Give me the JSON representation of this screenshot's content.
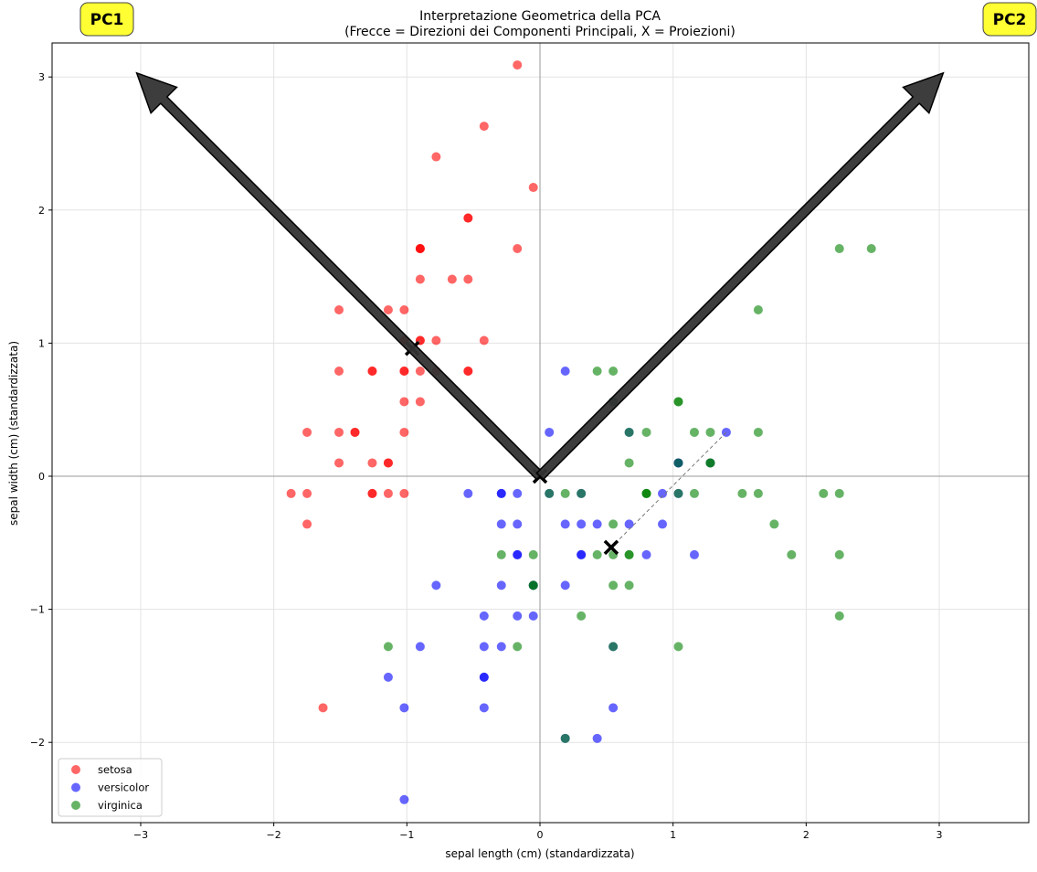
{
  "chart_data": {
    "type": "scatter",
    "title": "Interpretazione Geometrica della PCA",
    "subtitle": "(Frecce = Direzioni dei Componenti Principali, X = Proiezioni)",
    "xlabel": "sepal length (cm) (standardizzata)",
    "ylabel": "sepal width (cm) (standardizzata)",
    "xlim": [
      -3.67,
      3.67
    ],
    "ylim": [
      -2.6,
      3.26
    ],
    "xticks": [
      -3,
      -2,
      -1,
      0,
      1,
      2,
      3
    ],
    "xtick_labels": [
      "−3",
      "−2",
      "−1",
      "0",
      "1",
      "2",
      "3"
    ],
    "yticks": [
      -2,
      -1,
      0,
      1,
      2,
      3
    ],
    "ytick_labels": [
      "−2",
      "−1",
      "0",
      "1",
      "2",
      "3"
    ],
    "grid": true,
    "legend_position": "lower-left",
    "series": [
      {
        "name": "setosa",
        "color": "#ff0000",
        "x": [
          -0.9,
          -1.14,
          -1.39,
          -1.51,
          -1.02,
          -0.54,
          -1.51,
          -1.02,
          -1.75,
          -1.14,
          -0.54,
          -1.26,
          -1.26,
          -1.87,
          -0.05,
          -0.17,
          -0.54,
          -0.9,
          -0.17,
          -0.9,
          -0.54,
          -0.9,
          -1.51,
          -0.9,
          -1.26,
          -1.02,
          -1.02,
          -0.78,
          -0.78,
          -1.39,
          -1.26,
          -0.54,
          -0.78,
          -0.42,
          -1.14,
          -1.02,
          -0.42,
          -1.14,
          -1.75,
          -0.9,
          -1.02,
          -1.63,
          -1.75,
          -1.02,
          -0.9,
          -1.26,
          -0.9,
          -1.51,
          -0.66,
          -1.02
        ],
        "y": [
          1.02,
          -0.13,
          0.33,
          0.1,
          1.25,
          1.94,
          0.79,
          0.79,
          -0.36,
          0.1,
          1.48,
          0.79,
          -0.13,
          -0.13,
          2.17,
          3.09,
          1.94,
          1.02,
          1.71,
          1.71,
          0.79,
          1.48,
          1.25,
          0.56,
          0.79,
          -0.13,
          0.79,
          1.02,
          0.79,
          0.33,
          0.1,
          0.79,
          2.4,
          2.63,
          0.1,
          0.33,
          1.02,
          1.25,
          -0.13,
          0.79,
          1.02,
          -1.74,
          0.33,
          1.02,
          1.71,
          -0.13,
          1.71,
          0.33,
          1.48,
          0.56
        ]
      },
      {
        "name": "versicolor",
        "color": "#0000ff",
        "x": [
          1.4,
          0.67,
          1.28,
          -0.42,
          0.8,
          -0.17,
          0.55,
          -1.14,
          0.92,
          -0.78,
          -1.02,
          0.07,
          0.19,
          0.31,
          -0.29,
          1.04,
          -0.29,
          -0.05,
          0.43,
          -0.29,
          0.07,
          0.31,
          0.55,
          0.31,
          0.67,
          0.92,
          1.16,
          1.04,
          0.19,
          -0.17,
          -0.42,
          -0.42,
          -0.05,
          0.19,
          -0.54,
          0.19,
          1.04,
          0.55,
          -0.29,
          -0.42,
          -0.42,
          0.31,
          -0.05,
          -1.02,
          -0.29,
          -0.17,
          -0.17,
          0.43,
          -0.9,
          -0.17
        ],
        "y": [
          0.33,
          0.33,
          0.1,
          -1.74,
          -0.59,
          -0.59,
          0.56,
          -1.51,
          -0.36,
          -0.82,
          -2.43,
          -0.13,
          -1.97,
          -0.36,
          -0.36,
          0.1,
          -0.13,
          -0.82,
          -1.97,
          -1.28,
          0.33,
          -0.59,
          -1.28,
          -0.59,
          -0.36,
          -0.13,
          -0.59,
          -0.13,
          -0.36,
          -1.05,
          -1.51,
          -1.51,
          -0.82,
          -0.82,
          -0.13,
          0.79,
          0.1,
          -1.74,
          -0.13,
          -1.28,
          -1.05,
          -0.13,
          -1.05,
          -1.74,
          -0.82,
          -0.13,
          -0.36,
          -0.36,
          -1.28,
          -0.59
        ]
      },
      {
        "name": "virginica",
        "color": "#008000",
        "x": [
          0.55,
          -0.05,
          1.52,
          0.55,
          0.8,
          2.13,
          -1.14,
          1.76,
          1.04,
          1.64,
          0.8,
          0.67,
          1.16,
          -0.17,
          -0.05,
          0.67,
          0.8,
          2.25,
          2.25,
          0.19,
          1.28,
          -0.29,
          2.25,
          0.55,
          1.04,
          1.64,
          0.43,
          0.31,
          0.67,
          1.64,
          1.89,
          2.49,
          0.67,
          0.55,
          0.31,
          2.25,
          0.55,
          0.67,
          0.19,
          1.28,
          1.04,
          1.28,
          -0.05,
          1.16,
          1.04,
          1.04,
          0.55,
          0.8,
          0.43,
          0.07
        ],
        "y": [
          0.56,
          -0.82,
          -0.13,
          -0.36,
          -0.13,
          -0.13,
          -1.28,
          -0.36,
          -1.28,
          1.25,
          0.33,
          -0.82,
          -0.13,
          -1.28,
          -0.59,
          0.33,
          -0.13,
          1.71,
          -1.05,
          -1.97,
          0.33,
          -0.59,
          -0.59,
          -0.82,
          0.56,
          0.33,
          -0.59,
          -0.13,
          -0.59,
          -0.13,
          -0.59,
          1.71,
          -0.59,
          -0.59,
          -1.05,
          -0.13,
          0.79,
          0.1,
          -0.13,
          0.1,
          0.1,
          0.1,
          -0.82,
          0.33,
          0.56,
          -0.13,
          -1.28,
          -0.13,
          0.79,
          -0.13
        ]
      }
    ],
    "arrows": [
      {
        "label": "PC1",
        "dx": -3.03,
        "dy": 3.03
      },
      {
        "label": "PC2",
        "dx": 3.03,
        "dy": 3.03
      }
    ],
    "arrow_color": "#333333",
    "label_box_color": "#ffff33",
    "projections": [
      {
        "from": [
          0,
          0
        ],
        "to": [
          0,
          0
        ]
      },
      {
        "from": [
          -0.9,
          1.02
        ],
        "to": [
          -0.96,
          0.96
        ]
      },
      {
        "from": [
          1.4,
          0.33
        ],
        "to": [
          0.535,
          -0.535
        ]
      }
    ]
  }
}
